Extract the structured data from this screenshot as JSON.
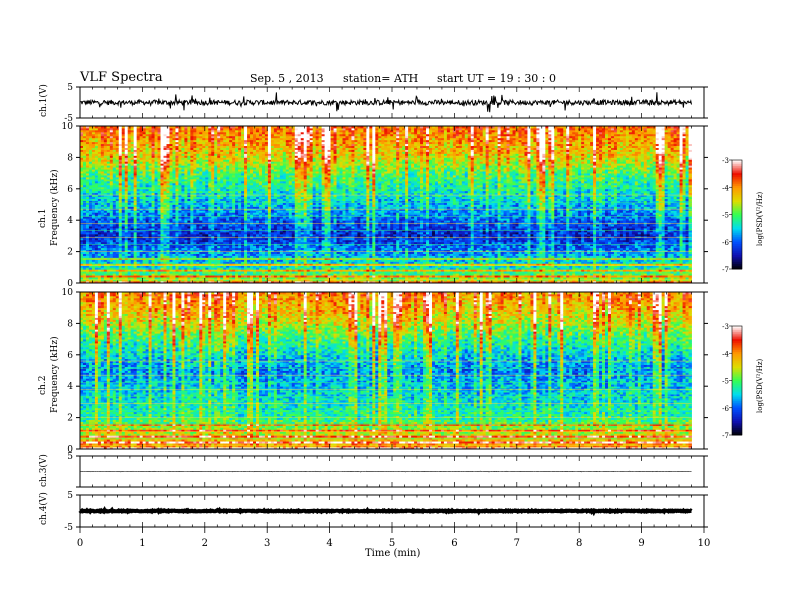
{
  "header": {
    "title": "VLF  Spectra",
    "date": "Sep. 5  , 2013",
    "station": "station= ATH",
    "start": "start  UT  =   19 : 30 : 0"
  },
  "colors": {
    "background": "#ffffff",
    "trace": "#000000",
    "colormap": [
      "#000000",
      "#1010b0",
      "#0050ff",
      "#00ddee",
      "#33ff55",
      "#dddd00",
      "#ff9900",
      "#ee1000",
      "#ffffff"
    ]
  },
  "chart_data": [
    {
      "name_key": "ch1_waveform",
      "type": "line",
      "ylabel": "ch.1(V)",
      "ylim": [
        -5,
        5
      ],
      "yticks": [
        "5",
        "-5"
      ],
      "baseline": 0,
      "noise_amplitude": 0.8,
      "spike_amplitude": 2.8,
      "xlim": [
        0,
        10
      ]
    },
    {
      "name_key": "ch1_spectrogram",
      "type": "heatmap",
      "ylabel_top": "ch.1",
      "ylabel": "Frequency  (kHz)",
      "ylim": [
        0,
        10
      ],
      "yticks": [
        "0",
        "2",
        "4",
        "6",
        "8",
        "10"
      ],
      "xlim": [
        0,
        10
      ],
      "data_end_min": 9.8,
      "colorbar": {
        "label": "log(PSD(V²/Hz)",
        "range": [
          -7,
          -3
        ],
        "ticks": [
          "-3",
          "-4",
          "-5",
          "-6",
          "-7"
        ]
      },
      "level_profile": [
        [
          0,
          -4.5
        ],
        [
          1,
          -5.4
        ],
        [
          2,
          -5.8
        ],
        [
          3,
          -6.3
        ],
        [
          4,
          -6.0
        ],
        [
          5,
          -5.6
        ],
        [
          6,
          -5.3
        ],
        [
          7,
          -5.0
        ],
        [
          8,
          -4.4
        ],
        [
          9,
          -4.1
        ],
        [
          10,
          -3.8
        ]
      ]
    },
    {
      "name_key": "ch2_spectrogram",
      "type": "heatmap",
      "ylabel_top": "ch.2",
      "ylabel": "Frequency  (kHz)",
      "ylim": [
        0,
        10
      ],
      "yticks": [
        "0",
        "2",
        "4",
        "6",
        "8",
        "10"
      ],
      "xlim": [
        0,
        10
      ],
      "data_end_min": 9.8,
      "colorbar": {
        "label": "log(PSD(V²/Hz)",
        "range": [
          -7,
          -3
        ],
        "ticks": [
          "-3",
          "-4",
          "-5",
          "-6",
          "-7"
        ]
      },
      "level_profile": [
        [
          0,
          -3.9
        ],
        [
          1,
          -4.6
        ],
        [
          2,
          -5.2
        ],
        [
          3,
          -5.4
        ],
        [
          4,
          -5.6
        ],
        [
          5,
          -5.8
        ],
        [
          6,
          -5.5
        ],
        [
          7,
          -5.1
        ],
        [
          8,
          -4.6
        ],
        [
          9,
          -4.2
        ],
        [
          10,
          -3.9
        ]
      ]
    },
    {
      "name_key": "ch3_waveform",
      "type": "line",
      "ylabel": "ch.3(V)",
      "ylim": [
        -5,
        5
      ],
      "yticks": [
        "5",
        ""
      ],
      "baseline": 0,
      "noise_amplitude": 0.05,
      "spike_amplitude": 0.15,
      "xlim": [
        0,
        10
      ]
    },
    {
      "name_key": "ch4_waveform",
      "type": "line",
      "ylabel": "ch.4(V)",
      "ylim": [
        -5,
        5
      ],
      "yticks": [
        "5",
        "-5"
      ],
      "baseline": 0,
      "noise_amplitude": 0.15,
      "spike_amplitude": 0.2,
      "xlim": [
        0,
        10
      ]
    }
  ],
  "x_axis": {
    "label": "Time  (min)",
    "ticks": [
      "0",
      "1",
      "2",
      "3",
      "4",
      "5",
      "6",
      "7",
      "8",
      "9",
      "10"
    ]
  }
}
